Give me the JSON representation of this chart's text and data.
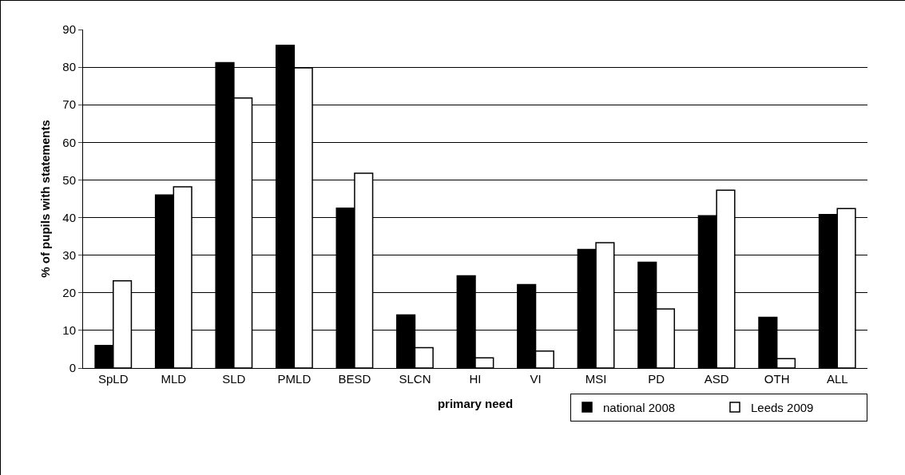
{
  "chart_data": {
    "type": "bar",
    "xlabel": "primary need",
    "ylabel": "% of pupils with statements",
    "categories": [
      "SpLD",
      "MLD",
      "SLD",
      "PMLD",
      "BESD",
      "SLCN",
      "HI",
      "VI",
      "MSI",
      "PD",
      "ASD",
      "OTH",
      "ALL"
    ],
    "series": [
      {
        "name": "national 2008",
        "color": "#000000",
        "values": [
          6,
          46,
          81.2,
          85.8,
          42.5,
          14.1,
          24.5,
          22.2,
          31.5,
          28.1,
          40.5,
          13.5,
          40.8
        ]
      },
      {
        "name": "Leeds 2009",
        "color": "#ffffff",
        "values": [
          23.2,
          48.2,
          71.8,
          79.8,
          51.8,
          5.4,
          2.7,
          4.5,
          33.3,
          15.7,
          47.3,
          2.5,
          42.4
        ]
      }
    ],
    "ylim": [
      0,
      90
    ],
    "yticks": [
      0,
      10,
      20,
      30,
      40,
      50,
      60,
      70,
      80,
      90
    ],
    "grid": "y",
    "legend": "bottom right"
  }
}
